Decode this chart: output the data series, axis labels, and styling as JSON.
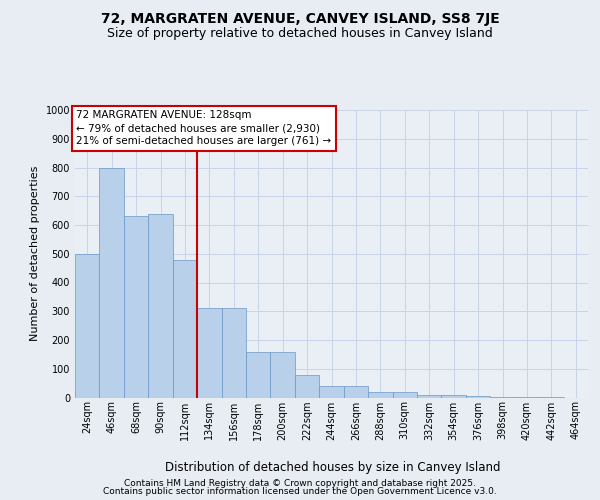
{
  "title_line1": "72, MARGRATEN AVENUE, CANVEY ISLAND, SS8 7JE",
  "title_line2": "Size of property relative to detached houses in Canvey Island",
  "xlabel": "Distribution of detached houses by size in Canvey Island",
  "ylabel": "Number of detached properties",
  "categories": [
    "24sqm",
    "46sqm",
    "68sqm",
    "90sqm",
    "112sqm",
    "134sqm",
    "156sqm",
    "178sqm",
    "200sqm",
    "222sqm",
    "244sqm",
    "266sqm",
    "288sqm",
    "310sqm",
    "332sqm",
    "354sqm",
    "376sqm",
    "398sqm",
    "420sqm",
    "442sqm",
    "464sqm"
  ],
  "values": [
    500,
    800,
    630,
    640,
    480,
    310,
    310,
    160,
    160,
    80,
    40,
    40,
    20,
    20,
    10,
    8,
    5,
    2,
    1,
    1,
    0
  ],
  "bar_color": "#b8d0ea",
  "bar_edge_color": "#6898c8",
  "vline_color": "#cc0000",
  "vline_x": 4.5,
  "annotation_text": "72 MARGRATEN AVENUE: 128sqm\n← 79% of detached houses are smaller (2,930)\n21% of semi-detached houses are larger (761) →",
  "annotation_box_facecolor": "#ffffff",
  "annotation_edge_color": "#cc0000",
  "annotation_fontsize": 7.5,
  "ylim": [
    0,
    1000
  ],
  "yticks": [
    0,
    100,
    200,
    300,
    400,
    500,
    600,
    700,
    800,
    900,
    1000
  ],
  "bg_color": "#e8edf4",
  "plot_bg_color": "#eaeff6",
  "grid_color": "#c8d4e8",
  "footer_line1": "Contains HM Land Registry data © Crown copyright and database right 2025.",
  "footer_line2": "Contains public sector information licensed under the Open Government Licence v3.0.",
  "title_fontsize": 10,
  "subtitle_fontsize": 9,
  "tick_fontsize": 7,
  "ylabel_fontsize": 8,
  "xlabel_fontsize": 8.5
}
